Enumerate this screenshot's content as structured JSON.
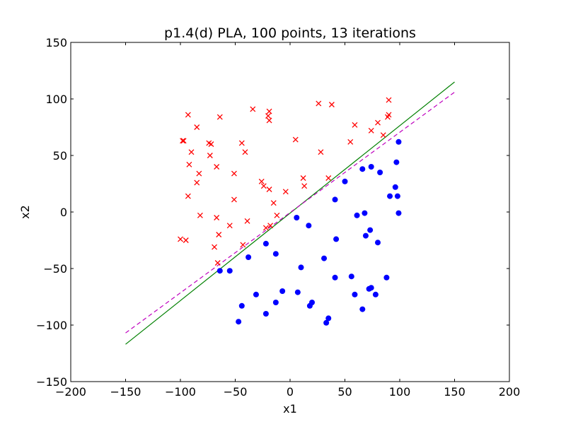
{
  "chart_data": {
    "type": "scatter",
    "title": "p1.4(d)  PLA, 100 points, 13 iterations",
    "xlabel": "x1",
    "ylabel": "x2",
    "xlim": [
      -200,
      200
    ],
    "ylim": [
      -150,
      150
    ],
    "xticks": [
      -200,
      -150,
      -100,
      -50,
      0,
      50,
      100,
      150,
      200
    ],
    "yticks": [
      -150,
      -100,
      -50,
      0,
      50,
      100,
      150
    ],
    "xtick_labels": [
      "−200",
      "−150",
      "−100",
      "−50",
      "0",
      "50",
      "100",
      "150",
      "200"
    ],
    "ytick_labels": [
      "−150",
      "−100",
      "−50",
      "0",
      "50",
      "100",
      "150"
    ],
    "grid": false,
    "series": [
      {
        "marker": "x",
        "color": "#ff0000",
        "points": [
          [
            -98,
            63
          ],
          [
            -97,
            63
          ],
          [
            -93,
            86
          ],
          [
            -92,
            42
          ],
          [
            -90,
            53
          ],
          [
            -93,
            14
          ],
          [
            -85,
            75
          ],
          [
            -85,
            26
          ],
          [
            -83,
            34
          ],
          [
            -82,
            -3
          ],
          [
            -74,
            61
          ],
          [
            -72,
            60
          ],
          [
            -73,
            50
          ],
          [
            -67,
            40
          ],
          [
            -67,
            -5
          ],
          [
            -65,
            -20
          ],
          [
            -64,
            84
          ],
          [
            -69,
            -31
          ],
          [
            -66,
            -45
          ],
          [
            -100,
            -24
          ],
          [
            -95,
            -25
          ],
          [
            -55,
            -12
          ],
          [
            -51,
            34
          ],
          [
            -51,
            11
          ],
          [
            -44,
            61
          ],
          [
            -43,
            -29
          ],
          [
            -41,
            53
          ],
          [
            -39,
            -8
          ],
          [
            -34,
            91
          ],
          [
            -26,
            27
          ],
          [
            -24,
            23
          ],
          [
            -22,
            -14
          ],
          [
            -20,
            85
          ],
          [
            -19,
            89
          ],
          [
            -19,
            81
          ],
          [
            -19,
            20
          ],
          [
            -18,
            -12
          ],
          [
            -15,
            8
          ],
          [
            -12,
            -3
          ],
          [
            -4,
            18
          ],
          [
            5,
            64
          ],
          [
            12,
            30
          ],
          [
            13,
            23
          ],
          [
            26,
            96
          ],
          [
            28,
            53
          ],
          [
            35,
            30
          ],
          [
            38,
            95
          ],
          [
            55,
            62
          ],
          [
            59,
            77
          ],
          [
            74,
            72
          ],
          [
            80,
            79
          ],
          [
            85,
            68
          ],
          [
            89,
            84
          ],
          [
            90,
            86
          ],
          [
            90,
            99
          ]
        ]
      },
      {
        "marker": "o",
        "color": "#0000ff",
        "points": [
          [
            -64,
            -52
          ],
          [
            -55,
            -52
          ],
          [
            -47,
            -97
          ],
          [
            -44,
            -83
          ],
          [
            -38,
            -40
          ],
          [
            -31,
            -73
          ],
          [
            -22,
            -28
          ],
          [
            -22,
            -90
          ],
          [
            -13,
            -37
          ],
          [
            -13,
            -80
          ],
          [
            -7,
            -70
          ],
          [
            6,
            -5
          ],
          [
            7,
            -71
          ],
          [
            10,
            -49
          ],
          [
            17,
            -12
          ],
          [
            18,
            -83
          ],
          [
            20,
            -80
          ],
          [
            31,
            -41
          ],
          [
            33,
            -98
          ],
          [
            35,
            -94
          ],
          [
            41,
            11
          ],
          [
            41,
            -58
          ],
          [
            42,
            -24
          ],
          [
            50,
            27
          ],
          [
            56,
            -57
          ],
          [
            59,
            -73
          ],
          [
            61,
            -3
          ],
          [
            66,
            38
          ],
          [
            66,
            -86
          ],
          [
            68,
            -1
          ],
          [
            69,
            -21
          ],
          [
            72,
            -68
          ],
          [
            73,
            -16
          ],
          [
            74,
            -67
          ],
          [
            74,
            40
          ],
          [
            78,
            -73
          ],
          [
            80,
            -27
          ],
          [
            82,
            35
          ],
          [
            88,
            -58
          ],
          [
            91,
            14
          ],
          [
            96,
            22
          ],
          [
            97,
            44
          ],
          [
            98,
            14
          ],
          [
            99,
            62
          ],
          [
            99,
            -1
          ]
        ]
      }
    ],
    "lines": [
      {
        "style": "solid",
        "color": "#008000",
        "x": [
          -150,
          150
        ],
        "y": [
          -117,
          115
        ]
      },
      {
        "style": "dashed",
        "color": "#bf00bf",
        "x": [
          -150,
          150
        ],
        "y": [
          -107,
          106
        ]
      }
    ]
  }
}
